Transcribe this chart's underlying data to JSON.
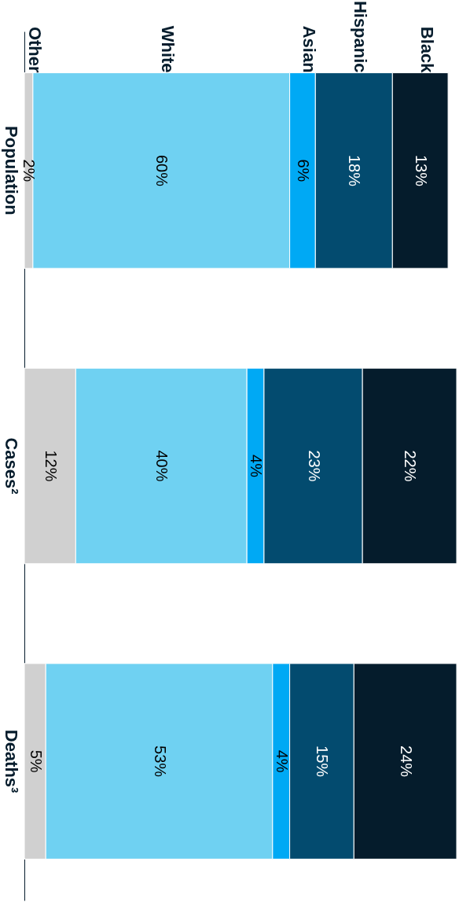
{
  "chart_data": {
    "type": "bar",
    "stacked": true,
    "orientation": "horizontal",
    "grid": false,
    "categories": [
      "Population",
      "Cases²",
      "Deaths³"
    ],
    "series": [
      {
        "name": "Other",
        "color": "#d0d0d0",
        "values": [
          2,
          12,
          5
        ],
        "value_labels": [
          "2%",
          "12%",
          "5%"
        ]
      },
      {
        "name": "White",
        "color": "#6fd1f2",
        "values": [
          60,
          40,
          53
        ],
        "value_labels": [
          "60%",
          "40%",
          "53%"
        ]
      },
      {
        "name": "Asian",
        "color": "#00a9f4",
        "values": [
          6,
          4,
          4
        ],
        "value_labels": [
          "6%",
          "4%",
          "4%"
        ]
      },
      {
        "name": "Hispanic",
        "color": "#034b6f",
        "values": [
          18,
          23,
          15
        ],
        "value_labels": [
          "18%",
          "23%",
          "15%"
        ]
      },
      {
        "name": "Black",
        "color": "#051c2c",
        "values": [
          13,
          22,
          24
        ],
        "value_labels": [
          "13%",
          "22%",
          "24%"
        ]
      }
    ]
  }
}
